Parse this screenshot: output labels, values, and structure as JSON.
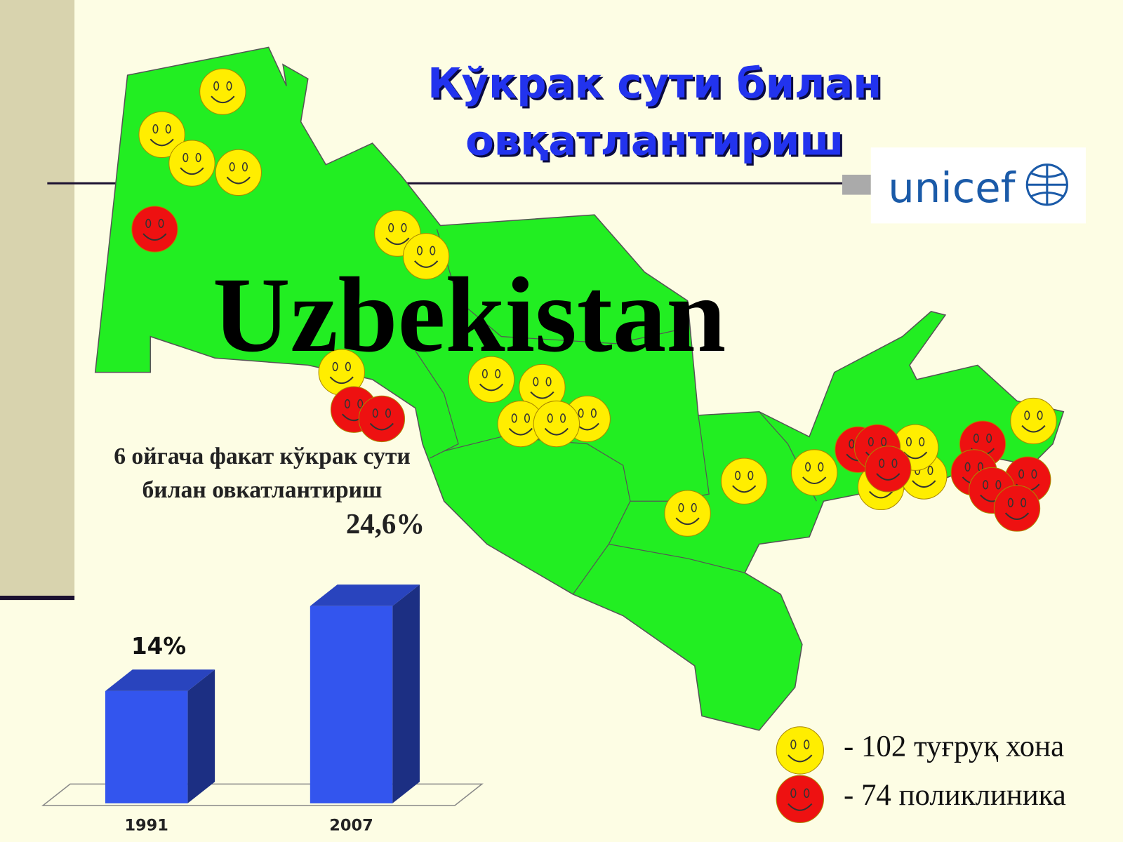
{
  "title": [
    "Кўкрак сути билан",
    "овқатлантириш"
  ],
  "logo": "unicef",
  "map_label": "Uzbekistan",
  "annotation": {
    "lines": [
      "6 ойгача факат кўкрак сути",
      "билан овкатлантириш"
    ],
    "value": "24,6%"
  },
  "legend": [
    {
      "color": "#ffee00",
      "label": "- 102 туғруқ хона"
    },
    {
      "color": "#ee1111",
      "label": "- 74 поликлиника"
    }
  ],
  "chart_data": {
    "type": "bar",
    "categories": [
      "1991",
      "2007"
    ],
    "values": [
      14,
      24.6
    ],
    "value_labels": [
      "14%",
      null
    ],
    "color": "#3355ee"
  }
}
